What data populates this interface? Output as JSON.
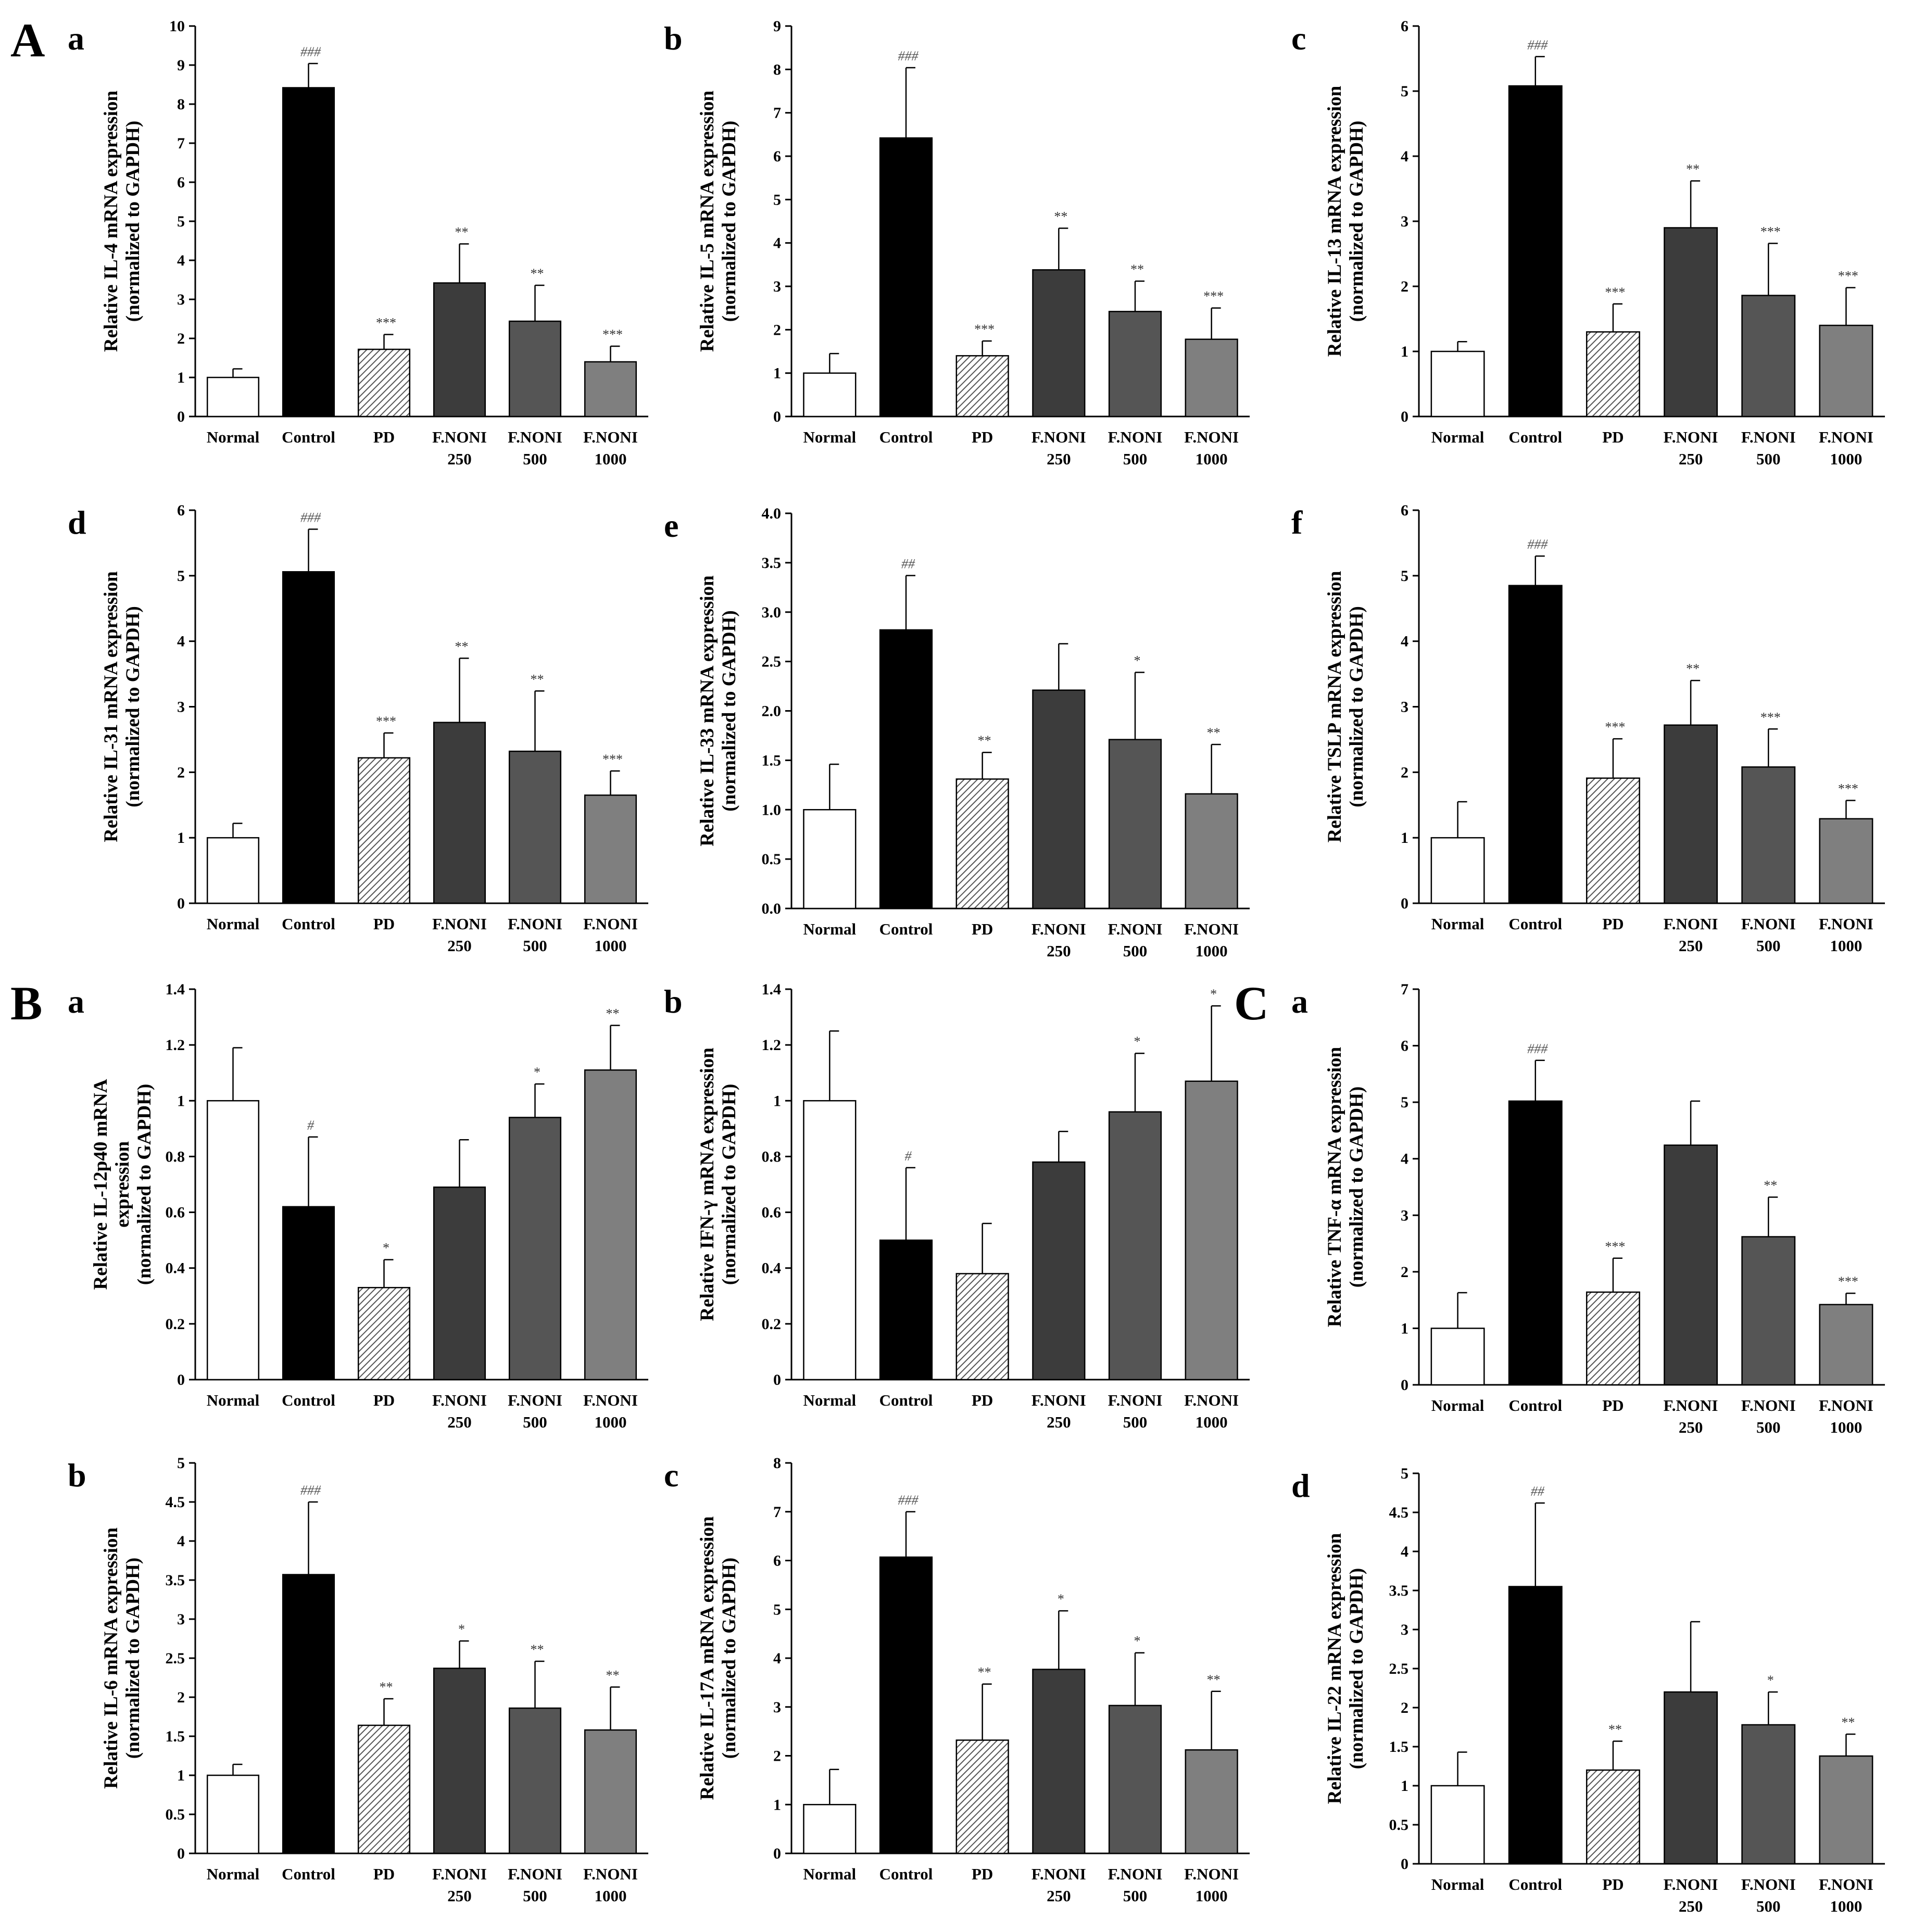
{
  "section_labels": [
    {
      "label": "A",
      "panel": 0
    },
    {
      "label": "B",
      "panel": 6
    },
    {
      "label": "C",
      "panel": 8
    }
  ],
  "styles": {
    "bar_fills": [
      "#ffffff",
      "#000000",
      "hatch",
      "#3c3c3c",
      "#555555",
      "#7f7f7f"
    ],
    "axis_color": "#000000",
    "hatch_color": "#555555"
  },
  "chart_data": [
    {
      "type": "bar",
      "letter": "a",
      "ylabel": [
        "Relative IL-4 mRNA expression",
        "(normalized to GAPDH)"
      ],
      "ylim": [
        0,
        10
      ],
      "ticks": [
        "0",
        "1",
        "2",
        "3",
        "4",
        "5",
        "6",
        "7",
        "8",
        "9",
        "10"
      ],
      "categories": [
        [
          "Normal"
        ],
        [
          "Control"
        ],
        [
          "PD"
        ],
        [
          "F.NONI",
          "250"
        ],
        [
          "F.NONI",
          "500"
        ],
        [
          "F.NONI",
          "1000"
        ]
      ],
      "values": [
        1.0,
        8.42,
        1.72,
        3.42,
        2.44,
        1.4
      ],
      "errors": [
        0.22,
        0.62,
        0.38,
        1.0,
        0.92,
        0.4
      ],
      "annotations": [
        "",
        "###",
        "***",
        "**",
        "**",
        "***"
      ]
    },
    {
      "type": "bar",
      "letter": "b",
      "ylabel": [
        "Relative IL-5 mRNA expression",
        "(normalized to GAPDH)"
      ],
      "ylim": [
        0,
        9
      ],
      "ticks": [
        "0",
        "1",
        "2",
        "3",
        "4",
        "5",
        "6",
        "7",
        "8",
        "9"
      ],
      "categories": [
        [
          "Normal"
        ],
        [
          "Control"
        ],
        [
          "PD"
        ],
        [
          "F.NONI",
          "250"
        ],
        [
          "F.NONI",
          "500"
        ],
        [
          "F.NONI",
          "1000"
        ]
      ],
      "values": [
        1.0,
        6.42,
        1.4,
        3.38,
        2.42,
        1.78
      ],
      "errors": [
        0.45,
        1.62,
        0.34,
        0.96,
        0.7,
        0.72
      ],
      "annotations": [
        "",
        "###",
        "***",
        "**",
        "**",
        "***"
      ]
    },
    {
      "type": "bar",
      "letter": "c",
      "ylabel": [
        "Relative IL-13 mRNA expression",
        "(normalized to GAPDH)"
      ],
      "ylim": [
        0,
        6
      ],
      "ticks": [
        "0",
        "1",
        "2",
        "3",
        "4",
        "5",
        "6"
      ],
      "categories": [
        [
          "Normal"
        ],
        [
          "Control"
        ],
        [
          "PD"
        ],
        [
          "F.NONI",
          "250"
        ],
        [
          "F.NONI",
          "500"
        ],
        [
          "F.NONI",
          "1000"
        ]
      ],
      "values": [
        1.0,
        5.08,
        1.3,
        2.9,
        1.86,
        1.4
      ],
      "errors": [
        0.15,
        0.45,
        0.43,
        0.72,
        0.8,
        0.58
      ],
      "annotations": [
        "",
        "###",
        "***",
        "**",
        "***",
        "***"
      ]
    },
    {
      "type": "bar",
      "letter": "d",
      "ylabel": [
        "Relative IL-31 mRNA expression",
        "(normalized to GAPDH)"
      ],
      "ylim": [
        0,
        6
      ],
      "ticks": [
        "0",
        "1",
        "2",
        "3",
        "4",
        "5",
        "6"
      ],
      "categories": [
        [
          "Normal"
        ],
        [
          "Control"
        ],
        [
          "PD"
        ],
        [
          "F.NONI",
          "250"
        ],
        [
          "F.NONI",
          "500"
        ],
        [
          "F.NONI",
          "1000"
        ]
      ],
      "values": [
        1.0,
        5.06,
        2.22,
        2.76,
        2.32,
        1.65
      ],
      "errors": [
        0.22,
        0.65,
        0.38,
        0.98,
        0.92,
        0.37
      ],
      "annotations": [
        "",
        "###",
        "***",
        "**",
        "**",
        "***"
      ]
    },
    {
      "type": "bar",
      "letter": "e",
      "ylabel": [
        "Relative IL-33 mRNA expression",
        "(normalized to GAPDH)"
      ],
      "ylim": [
        0,
        4
      ],
      "ticks": [
        "0.0",
        "0.5",
        "1.0",
        "1.5",
        "2.0",
        "2.5",
        "3.0",
        "3.5",
        "4.0"
      ],
      "categories": [
        [
          "Normal"
        ],
        [
          "Control"
        ],
        [
          "PD"
        ],
        [
          "F.NONI",
          "250"
        ],
        [
          "F.NONI",
          "500"
        ],
        [
          "F.NONI",
          "1000"
        ]
      ],
      "values": [
        1.0,
        2.82,
        1.31,
        2.21,
        1.71,
        1.16
      ],
      "errors": [
        0.46,
        0.55,
        0.27,
        0.47,
        0.68,
        0.5
      ],
      "annotations": [
        "",
        "##",
        "**",
        "",
        "*",
        "**"
      ]
    },
    {
      "type": "bar",
      "letter": "f",
      "ylabel": [
        "Relative TSLP mRNA expression",
        "(normalized to GAPDH)"
      ],
      "ylim": [
        0,
        6
      ],
      "ticks": [
        "0",
        "1",
        "2",
        "3",
        "4",
        "5",
        "6"
      ],
      "categories": [
        [
          "Normal"
        ],
        [
          "Control"
        ],
        [
          "PD"
        ],
        [
          "F.NONI",
          "250"
        ],
        [
          "F.NONI",
          "500"
        ],
        [
          "F.NONI",
          "1000"
        ]
      ],
      "values": [
        1.0,
        4.85,
        1.91,
        2.72,
        2.08,
        1.29
      ],
      "errors": [
        0.55,
        0.45,
        0.6,
        0.68,
        0.58,
        0.28
      ],
      "annotations": [
        "",
        "###",
        "***",
        "**",
        "***",
        "***"
      ]
    },
    {
      "type": "bar",
      "letter": "a",
      "ylabel": [
        "Relative IL-12p40 mRNA",
        "expression",
        "(normalized to GAPDH)"
      ],
      "ylim": [
        0,
        1.4
      ],
      "ticks": [
        "0",
        "0.2",
        "0.4",
        "0.6",
        "0.8",
        "1",
        "1.2",
        "1.4"
      ],
      "categories": [
        [
          "Normal"
        ],
        [
          "Control"
        ],
        [
          "PD"
        ],
        [
          "F.NONI",
          "250"
        ],
        [
          "F.NONI",
          "500"
        ],
        [
          "F.NONI",
          "1000"
        ]
      ],
      "values": [
        1.0,
        0.62,
        0.33,
        0.69,
        0.94,
        1.11
      ],
      "errors": [
        0.19,
        0.25,
        0.1,
        0.17,
        0.12,
        0.16
      ],
      "annotations": [
        "",
        "#",
        "*",
        "",
        "*",
        "**"
      ]
    },
    {
      "type": "bar",
      "letter": "b",
      "ylabel": [
        "Relative IFN-γ mRNA expression",
        "(normalized to GAPDH)"
      ],
      "ylim": [
        0,
        1.4
      ],
      "ticks": [
        "0",
        "0.2",
        "0.4",
        "0.6",
        "0.8",
        "1",
        "1.2",
        "1.4"
      ],
      "categories": [
        [
          "Normal"
        ],
        [
          "Control"
        ],
        [
          "PD"
        ],
        [
          "F.NONI",
          "250"
        ],
        [
          "F.NONI",
          "500"
        ],
        [
          "F.NONI",
          "1000"
        ]
      ],
      "values": [
        1.0,
        0.5,
        0.38,
        0.78,
        0.96,
        1.07
      ],
      "errors": [
        0.25,
        0.26,
        0.18,
        0.11,
        0.21,
        0.27
      ],
      "annotations": [
        "",
        "#",
        "",
        "",
        "*",
        "*"
      ]
    },
    {
      "type": "bar",
      "letter": "a",
      "ylabel": [
        "Relative TNF-α mRNA expression",
        "(normalized to GAPDH)"
      ],
      "ylim": [
        0,
        7
      ],
      "ticks": [
        "0",
        "1",
        "2",
        "3",
        "4",
        "5",
        "6",
        "7"
      ],
      "categories": [
        [
          "Normal"
        ],
        [
          "Control"
        ],
        [
          "PD"
        ],
        [
          "F.NONI",
          "250"
        ],
        [
          "F.NONI",
          "500"
        ],
        [
          "F.NONI",
          "1000"
        ]
      ],
      "values": [
        1.0,
        5.02,
        1.64,
        4.24,
        2.62,
        1.42
      ],
      "errors": [
        0.63,
        0.72,
        0.6,
        0.78,
        0.7,
        0.2
      ],
      "annotations": [
        "",
        "###",
        "***",
        "",
        "**",
        "***"
      ]
    },
    {
      "type": "bar",
      "letter": "b",
      "ylabel": [
        "Relative IL-6 mRNA expression",
        "(normalized to GAPDH)"
      ],
      "ylim": [
        0,
        5
      ],
      "ticks": [
        "0",
        "0.5",
        "1",
        "1.5",
        "2",
        "2.5",
        "3",
        "3.5",
        "4",
        "4.5",
        "5"
      ],
      "categories": [
        [
          "Normal"
        ],
        [
          "Control"
        ],
        [
          "PD"
        ],
        [
          "F.NONI",
          "250"
        ],
        [
          "F.NONI",
          "500"
        ],
        [
          "F.NONI",
          "1000"
        ]
      ],
      "values": [
        1.0,
        3.57,
        1.64,
        2.37,
        1.86,
        1.58
      ],
      "errors": [
        0.14,
        0.93,
        0.34,
        0.35,
        0.6,
        0.55
      ],
      "annotations": [
        "",
        "###",
        "**",
        "*",
        "**",
        "**"
      ]
    },
    {
      "type": "bar",
      "letter": "c",
      "ylabel": [
        "Relative IL-17A mRNA expression",
        "(normalized to GAPDH)"
      ],
      "ylim": [
        0,
        8
      ],
      "ticks": [
        "0",
        "1",
        "2",
        "3",
        "4",
        "5",
        "6",
        "7",
        "8"
      ],
      "categories": [
        [
          "Normal"
        ],
        [
          "Control"
        ],
        [
          "PD"
        ],
        [
          "F.NONI",
          "250"
        ],
        [
          "F.NONI",
          "500"
        ],
        [
          "F.NONI",
          "1000"
        ]
      ],
      "values": [
        1.0,
        6.07,
        2.32,
        3.77,
        3.03,
        2.12
      ],
      "errors": [
        0.72,
        0.93,
        1.15,
        1.2,
        1.08,
        1.2
      ],
      "annotations": [
        "",
        "###",
        "**",
        "*",
        "*",
        "**"
      ]
    },
    {
      "type": "bar",
      "letter": "d",
      "ylabel": [
        "Relative IL-22 mRNA expression",
        "(normalized to GAPDH)"
      ],
      "ylim": [
        0,
        5
      ],
      "ticks": [
        "0",
        "0.5",
        "1",
        "1.5",
        "2",
        "2.5",
        "3",
        "3.5",
        "4",
        "4.5",
        "5"
      ],
      "categories": [
        [
          "Normal"
        ],
        [
          "Control"
        ],
        [
          "PD"
        ],
        [
          "F.NONI",
          "250"
        ],
        [
          "F.NONI",
          "500"
        ],
        [
          "F.NONI",
          "1000"
        ]
      ],
      "values": [
        1.0,
        3.55,
        1.2,
        2.2,
        1.78,
        1.38
      ],
      "errors": [
        0.43,
        1.07,
        0.37,
        0.9,
        0.42,
        0.28
      ],
      "annotations": [
        "",
        "##",
        "**",
        "",
        "*",
        "**"
      ]
    }
  ]
}
